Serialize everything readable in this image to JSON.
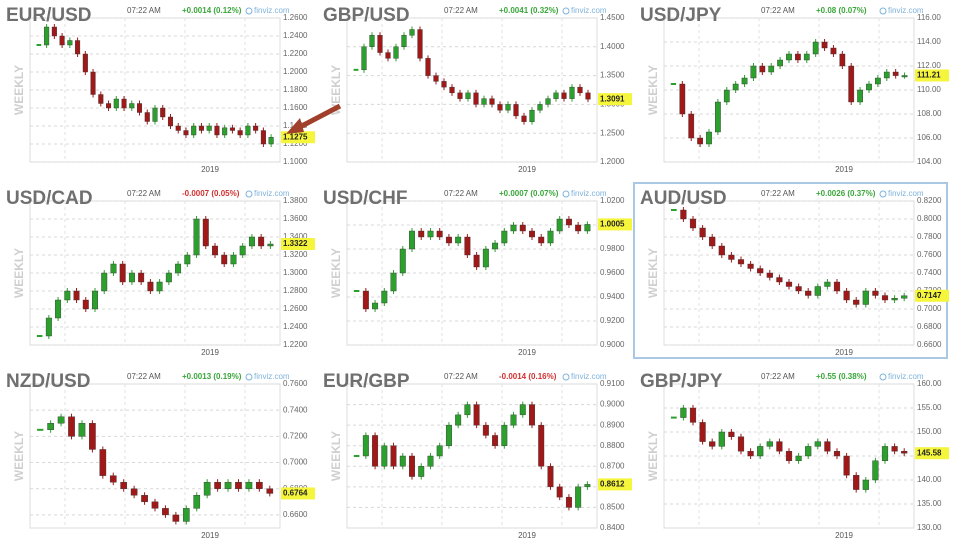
{
  "chart_data": [
    {
      "type": "candlestick",
      "title": "EUR/USD",
      "time": "07:22 AM",
      "change": "+0.0014 (0.12%)",
      "change_color": "#3aa63a",
      "source": "finviz.com",
      "y_label": "WEEKLY",
      "x_tick_label": "2019",
      "up_color": "#2ca02c",
      "down_color": "#a01818",
      "values": [
        1.23,
        1.25,
        1.24,
        1.23,
        1.235,
        1.22,
        1.2,
        1.175,
        1.165,
        1.16,
        1.17,
        1.16,
        1.165,
        1.155,
        1.145,
        1.16,
        1.15,
        1.14,
        1.135,
        1.13,
        1.14,
        1.135,
        1.14,
        1.13,
        1.138,
        1.135,
        1.13,
        1.14,
        1.135,
        1.12,
        1.1275
      ],
      "last": 1.1275,
      "ylim": [
        1.1,
        1.26
      ],
      "yticks": [
        {
          "value": 1.1,
          "label": "1.1000"
        },
        {
          "value": 1.12,
          "label": "1.1200"
        },
        {
          "value": 1.14,
          "label": "1.1400"
        },
        {
          "value": 1.16,
          "label": "1.1600"
        },
        {
          "value": 1.18,
          "label": "1.1800"
        },
        {
          "value": 1.2,
          "label": "1.2000"
        },
        {
          "value": 1.22,
          "label": "1.2200"
        },
        {
          "value": 1.24,
          "label": "1.2400"
        },
        {
          "value": 1.26,
          "label": "1.2600"
        }
      ]
    },
    {
      "type": "candlestick",
      "title": "GBP/USD",
      "time": "07:22 AM",
      "change": "+0.0041 (0.32%)",
      "change_color": "#3aa63a",
      "source": "finviz.com",
      "y_label": "WEEKLY",
      "x_tick_label": "2019",
      "up_color": "#2ca02c",
      "down_color": "#a01818",
      "values": [
        1.36,
        1.4,
        1.42,
        1.39,
        1.38,
        1.4,
        1.42,
        1.43,
        1.38,
        1.35,
        1.34,
        1.33,
        1.32,
        1.31,
        1.32,
        1.3,
        1.31,
        1.3,
        1.29,
        1.3,
        1.28,
        1.27,
        1.29,
        1.3,
        1.31,
        1.32,
        1.31,
        1.33,
        1.32,
        1.3091
      ],
      "last": 1.3091,
      "ylim": [
        1.2,
        1.45
      ],
      "yticks": [
        {
          "value": 1.2,
          "label": "1.2000"
        },
        {
          "value": 1.25,
          "label": "1.2500"
        },
        {
          "value": 1.3,
          "label": "1.3000"
        },
        {
          "value": 1.35,
          "label": "1.3500"
        },
        {
          "value": 1.4,
          "label": "1.4000"
        },
        {
          "value": 1.45,
          "label": "1.4500"
        }
      ]
    },
    {
      "type": "candlestick",
      "title": "USD/JPY",
      "time": "07:22 AM",
      "change": "+0.08 (0.07%)",
      "change_color": "#3aa63a",
      "source": "finviz.com",
      "y_label": "WEEKLY",
      "x_tick_label": "2019",
      "up_color": "#2ca02c",
      "down_color": "#a01818",
      "values": [
        110.5,
        108,
        106,
        105.5,
        106.5,
        109,
        110,
        110.5,
        111,
        112,
        111.5,
        112,
        112.5,
        113,
        112.5,
        113,
        114,
        113.5,
        113,
        112,
        109,
        110,
        110.5,
        111,
        111.5,
        111.2,
        111.21
      ],
      "last": 111.21,
      "ylim": [
        104,
        116
      ],
      "yticks": [
        {
          "value": 104,
          "label": "104.00"
        },
        {
          "value": 106,
          "label": "106.00"
        },
        {
          "value": 108,
          "label": "108.00"
        },
        {
          "value": 110,
          "label": "110.00"
        },
        {
          "value": 112,
          "label": "112.00"
        },
        {
          "value": 114,
          "label": "114.00"
        },
        {
          "value": 116,
          "label": "116.00"
        }
      ]
    },
    {
      "type": "candlestick",
      "title": "USD/CAD",
      "time": "07:22 AM",
      "change": "-0.0007 (0.05%)",
      "change_color": "#d03030",
      "source": "finviz.com",
      "y_label": "WEEKLY",
      "x_tick_label": "2019",
      "up_color": "#2ca02c",
      "down_color": "#a01818",
      "values": [
        1.23,
        1.25,
        1.27,
        1.28,
        1.27,
        1.26,
        1.28,
        1.3,
        1.31,
        1.29,
        1.3,
        1.29,
        1.28,
        1.29,
        1.3,
        1.31,
        1.32,
        1.36,
        1.33,
        1.32,
        1.31,
        1.32,
        1.33,
        1.34,
        1.33,
        1.3322
      ],
      "last": 1.3322,
      "ylim": [
        1.22,
        1.38
      ],
      "yticks": [
        {
          "value": 1.22,
          "label": "1.2200"
        },
        {
          "value": 1.24,
          "label": "1.2400"
        },
        {
          "value": 1.26,
          "label": "1.2600"
        },
        {
          "value": 1.28,
          "label": "1.2800"
        },
        {
          "value": 1.3,
          "label": "1.3000"
        },
        {
          "value": 1.32,
          "label": "1.3200"
        },
        {
          "value": 1.34,
          "label": "1.3400"
        },
        {
          "value": 1.36,
          "label": "1.3600"
        },
        {
          "value": 1.38,
          "label": "1.3800"
        }
      ]
    },
    {
      "type": "candlestick",
      "title": "USD/CHF",
      "time": "07:22 AM",
      "change": "+0.0007 (0.07%)",
      "change_color": "#3aa63a",
      "source": "finviz.com",
      "y_label": "WEEKLY",
      "x_tick_label": "2019",
      "up_color": "#2ca02c",
      "down_color": "#a01818",
      "values": [
        0.945,
        0.93,
        0.935,
        0.945,
        0.96,
        0.98,
        0.995,
        0.99,
        0.995,
        0.99,
        0.985,
        0.99,
        0.975,
        0.965,
        0.98,
        0.985,
        0.995,
        1.0,
        0.995,
        0.99,
        0.985,
        0.995,
        1.005,
        1.0,
        0.995,
        1.0005
      ],
      "last": 1.0005,
      "ylim": [
        0.9,
        1.02
      ],
      "yticks": [
        {
          "value": 0.9,
          "label": "0.9000"
        },
        {
          "value": 0.92,
          "label": "0.9200"
        },
        {
          "value": 0.94,
          "label": "0.9400"
        },
        {
          "value": 0.96,
          "label": "0.9600"
        },
        {
          "value": 0.98,
          "label": "0.9800"
        },
        {
          "value": 1.0,
          "label": "1.0000"
        },
        {
          "value": 1.02,
          "label": "1.0200"
        }
      ]
    },
    {
      "type": "candlestick",
      "title": "AUD/USD",
      "time": "07:22 AM",
      "change": "+0.0026 (0.37%)",
      "change_color": "#3aa63a",
      "source": "finviz.com",
      "y_label": "WEEKLY",
      "x_tick_label": "2019",
      "up_color": "#2ca02c",
      "down_color": "#a01818",
      "highlight": true,
      "values": [
        0.81,
        0.8,
        0.79,
        0.78,
        0.77,
        0.76,
        0.755,
        0.75,
        0.745,
        0.74,
        0.735,
        0.73,
        0.725,
        0.72,
        0.715,
        0.725,
        0.73,
        0.72,
        0.71,
        0.705,
        0.72,
        0.715,
        0.71,
        0.712,
        0.7147
      ],
      "last": 0.7147,
      "ylim": [
        0.66,
        0.82
      ],
      "yticks": [
        {
          "value": 0.66,
          "label": "0.6600"
        },
        {
          "value": 0.68,
          "label": "0.6800"
        },
        {
          "value": 0.7,
          "label": "0.7000"
        },
        {
          "value": 0.72,
          "label": "0.7200"
        },
        {
          "value": 0.74,
          "label": "0.7400"
        },
        {
          "value": 0.76,
          "label": "0.7600"
        },
        {
          "value": 0.78,
          "label": "0.7800"
        },
        {
          "value": 0.8,
          "label": "0.8000"
        },
        {
          "value": 0.82,
          "label": "0.8200"
        }
      ]
    },
    {
      "type": "candlestick",
      "title": "NZD/USD",
      "time": "07:22 AM",
      "change": "+0.0013 (0.19%)",
      "change_color": "#3aa63a",
      "source": "finviz.com",
      "y_label": "WEEKLY",
      "x_tick_label": "2019",
      "up_color": "#2ca02c",
      "down_color": "#a01818",
      "values": [
        0.725,
        0.73,
        0.735,
        0.72,
        0.73,
        0.71,
        0.69,
        0.685,
        0.68,
        0.675,
        0.67,
        0.665,
        0.66,
        0.655,
        0.665,
        0.675,
        0.685,
        0.68,
        0.685,
        0.68,
        0.685,
        0.68,
        0.6764
      ],
      "last": 0.6764,
      "ylim": [
        0.65,
        0.76
      ],
      "yticks": [
        {
          "value": 0.66,
          "label": "0.6600"
        },
        {
          "value": 0.68,
          "label": "0.6800"
        },
        {
          "value": 0.7,
          "label": "0.7000"
        },
        {
          "value": 0.72,
          "label": "0.7200"
        },
        {
          "value": 0.74,
          "label": "0.7400"
        },
        {
          "value": 0.76,
          "label": "0.7600"
        }
      ]
    },
    {
      "type": "candlestick",
      "title": "EUR/GBP",
      "time": "07:22 AM",
      "change": "-0.0014 (0.16%)",
      "change_color": "#d03030",
      "source": "finviz.com",
      "y_label": "WEEKLY",
      "x_tick_label": "2019",
      "up_color": "#2ca02c",
      "down_color": "#a01818",
      "values": [
        0.875,
        0.885,
        0.87,
        0.88,
        0.87,
        0.875,
        0.865,
        0.87,
        0.875,
        0.88,
        0.89,
        0.895,
        0.9,
        0.89,
        0.885,
        0.88,
        0.89,
        0.895,
        0.9,
        0.89,
        0.87,
        0.86,
        0.855,
        0.85,
        0.86,
        0.8612
      ],
      "last": 0.8612,
      "ylim": [
        0.84,
        0.91
      ],
      "yticks": [
        {
          "value": 0.84,
          "label": "0.8400"
        },
        {
          "value": 0.85,
          "label": "0.8500"
        },
        {
          "value": 0.86,
          "label": "0.8600"
        },
        {
          "value": 0.87,
          "label": "0.8700"
        },
        {
          "value": 0.88,
          "label": "0.8800"
        },
        {
          "value": 0.89,
          "label": "0.8900"
        },
        {
          "value": 0.9,
          "label": "0.9000"
        },
        {
          "value": 0.91,
          "label": "0.9100"
        }
      ]
    },
    {
      "type": "candlestick",
      "title": "GBP/JPY",
      "time": "07:22 AM",
      "change": "+0.55 (0.38%)",
      "change_color": "#3aa63a",
      "source": "finviz.com",
      "y_label": "WEEKLY",
      "x_tick_label": "2019",
      "up_color": "#2ca02c",
      "down_color": "#a01818",
      "values": [
        153,
        155,
        152,
        148,
        147,
        150,
        149,
        146,
        145,
        147,
        148,
        146,
        144,
        145,
        147,
        148,
        146,
        145,
        141,
        138,
        140,
        144,
        147,
        146,
        145.58
      ],
      "last": 145.58,
      "ylim": [
        130,
        160
      ],
      "yticks": [
        {
          "value": 130,
          "label": "130.00"
        },
        {
          "value": 135,
          "label": "135.00"
        },
        {
          "value": 140,
          "label": "140.00"
        },
        {
          "value": 145,
          "label": "145.00"
        },
        {
          "value": 150,
          "label": "150.00"
        },
        {
          "value": 155,
          "label": "155.00"
        },
        {
          "value": 160,
          "label": "160.00"
        }
      ]
    }
  ]
}
